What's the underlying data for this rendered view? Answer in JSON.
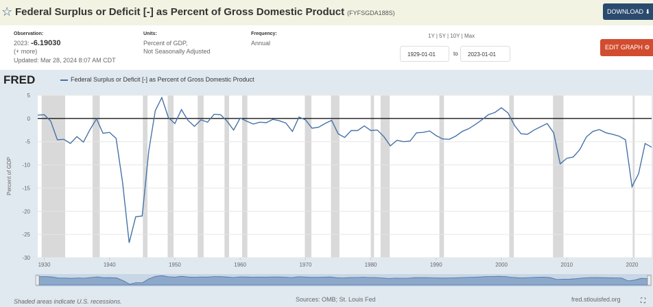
{
  "header": {
    "title": "Federal Surplus or Deficit [-] as Percent of Gross Domestic Product",
    "series_id": "(FYFSGDA188S)",
    "download_label": "DOWNLOAD"
  },
  "meta": {
    "observation_label": "Observation:",
    "observation_year": "2023:",
    "observation_value": "-6.19030",
    "more": "(+ more)",
    "updated": "Updated: Mar 28, 2024 8:07 AM CDT",
    "units_label": "Units:",
    "units_line1": "Percent of GDP,",
    "units_line2": "Not Seasonally Adjusted",
    "frequency_label": "Frequency:",
    "frequency_value": "Annual"
  },
  "controls": {
    "period_1y": "1Y",
    "period_5y": "5Y",
    "period_10y": "10Y",
    "period_max": "Max",
    "start_date": "1929-01-01",
    "to_label": "to",
    "end_date": "2023-01-01",
    "edit_label": "EDIT GRAPH"
  },
  "brand": "FRED",
  "footer": {
    "recession_note": "Shaded areas indicate U.S. recessions.",
    "source": "Sources: OMB; St. Louis Fed",
    "site": "fred.stlouisfed.org"
  },
  "colors": {
    "line": "#4572a7",
    "recession": "#d9d9d9",
    "zero": "#000000"
  },
  "chart_data": {
    "type": "line",
    "title": "Federal Surplus or Deficit [-] as Percent of Gross Domestic Product",
    "legend": "Federal Surplus or Deficit [-] as Percent of Gross Domestic Product",
    "xlabel": "",
    "ylabel": "Percent of GDP",
    "xlim": [
      1929,
      2023
    ],
    "ylim": [
      -30,
      5
    ],
    "y_ticks": [
      5,
      0,
      -5,
      -10,
      -15,
      -20,
      -25,
      -30
    ],
    "x_ticks": [
      1930,
      1940,
      1950,
      1960,
      1970,
      1980,
      1990,
      2000,
      2010,
      2020
    ],
    "recessions": [
      [
        1929.6,
        1933.2
      ],
      [
        1937.4,
        1938.5
      ],
      [
        1945.1,
        1945.8
      ],
      [
        1948.9,
        1949.8
      ],
      [
        1953.5,
        1954.4
      ],
      [
        1957.6,
        1958.3
      ],
      [
        1960.3,
        1961.1
      ],
      [
        1969.9,
        1970.9
      ],
      [
        1973.9,
        1975.2
      ],
      [
        1980.0,
        1980.5
      ],
      [
        1981.5,
        1982.9
      ],
      [
        1990.5,
        1991.2
      ],
      [
        2001.2,
        2001.9
      ],
      [
        2007.9,
        2009.5
      ],
      [
        2020.1,
        2020.4
      ]
    ],
    "series": [
      {
        "name": "FYFSGDA188S",
        "x": [
          1929,
          1930,
          1931,
          1932,
          1933,
          1934,
          1935,
          1936,
          1937,
          1938,
          1939,
          1940,
          1941,
          1942,
          1943,
          1944,
          1945,
          1946,
          1947,
          1948,
          1949,
          1950,
          1951,
          1952,
          1953,
          1954,
          1955,
          1956,
          1957,
          1958,
          1959,
          1960,
          1961,
          1962,
          1963,
          1964,
          1965,
          1966,
          1967,
          1968,
          1969,
          1970,
          1971,
          1972,
          1973,
          1974,
          1975,
          1976,
          1977,
          1978,
          1979,
          1980,
          1981,
          1982,
          1983,
          1984,
          1985,
          1986,
          1987,
          1988,
          1989,
          1990,
          1991,
          1992,
          1993,
          1994,
          1995,
          1996,
          1997,
          1998,
          1999,
          2000,
          2001,
          2002,
          2003,
          2004,
          2005,
          2006,
          2007,
          2008,
          2009,
          2010,
          2011,
          2012,
          2013,
          2014,
          2015,
          2016,
          2017,
          2018,
          2019,
          2020,
          2021,
          2022,
          2023
        ],
        "values": [
          0.7,
          0.8,
          -0.6,
          -4.6,
          -4.5,
          -5.4,
          -3.9,
          -5.1,
          -2.4,
          -0.1,
          -3.2,
          -3.0,
          -4.3,
          -13.9,
          -26.8,
          -21.2,
          -21.0,
          -7.0,
          1.7,
          4.5,
          0.2,
          -1.1,
          1.9,
          -0.4,
          -1.7,
          -0.3,
          -0.8,
          0.9,
          0.8,
          -0.6,
          -2.5,
          0.1,
          -0.6,
          -1.2,
          -0.8,
          -0.9,
          -0.2,
          -0.5,
          -1.0,
          -2.8,
          0.3,
          -0.3,
          -2.1,
          -1.9,
          -1.1,
          -0.4,
          -3.3,
          -4.1,
          -2.6,
          -2.6,
          -1.6,
          -2.6,
          -2.5,
          -3.9,
          -5.9,
          -4.7,
          -5.0,
          -4.9,
          -3.1,
          -3.0,
          -2.7,
          -3.7,
          -4.4,
          -4.5,
          -3.8,
          -2.8,
          -2.2,
          -1.3,
          -0.3,
          0.8,
          1.3,
          2.3,
          1.2,
          -1.5,
          -3.3,
          -3.4,
          -2.5,
          -1.8,
          -1.1,
          -3.1,
          -9.8,
          -8.6,
          -8.3,
          -6.7,
          -4.0,
          -2.8,
          -2.4,
          -3.1,
          -3.4,
          -3.8,
          -4.6,
          -14.7,
          -11.9,
          -5.4,
          -6.2
        ]
      }
    ]
  }
}
